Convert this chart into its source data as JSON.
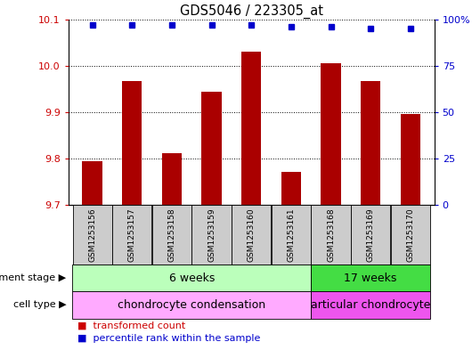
{
  "title": "GDS5046 / 223305_at",
  "samples": [
    "GSM1253156",
    "GSM1253157",
    "GSM1253158",
    "GSM1253159",
    "GSM1253160",
    "GSM1253161",
    "GSM1253168",
    "GSM1253169",
    "GSM1253170"
  ],
  "transformed_counts": [
    9.794,
    9.968,
    9.812,
    9.944,
    10.03,
    9.772,
    10.005,
    9.968,
    9.897
  ],
  "percentile_ranks": [
    97,
    97,
    97,
    97,
    97,
    96,
    96,
    95,
    95
  ],
  "ylim_left": [
    9.7,
    10.1
  ],
  "ylim_right": [
    0,
    100
  ],
  "yticks_left": [
    9.7,
    9.8,
    9.9,
    10.0,
    10.1
  ],
  "yticks_right": [
    0,
    25,
    50,
    75,
    100
  ],
  "ytick_labels_right": [
    "0",
    "25",
    "50",
    "75",
    "100%"
  ],
  "bar_color": "#aa0000",
  "dot_color": "#0000cc",
  "tick_label_color_left": "#cc0000",
  "tick_label_color_right": "#0000cc",
  "development_stage_groups": [
    {
      "label": "6 weeks",
      "start": 0,
      "end": 5,
      "color": "#bbffbb"
    },
    {
      "label": "17 weeks",
      "start": 6,
      "end": 8,
      "color": "#44dd44"
    }
  ],
  "cell_type_groups": [
    {
      "label": "chondrocyte condensation",
      "start": 0,
      "end": 5,
      "color": "#ffaaff"
    },
    {
      "label": "articular chondrocyte",
      "start": 6,
      "end": 8,
      "color": "#ee55ee"
    }
  ],
  "legend_items": [
    {
      "color": "#cc0000",
      "label": "transformed count"
    },
    {
      "color": "#0000cc",
      "label": "percentile rank within the sample"
    }
  ],
  "row_label_dev": "development stage",
  "row_label_cell": "cell type",
  "sample_box_color": "#cccccc",
  "bar_width": 0.5
}
